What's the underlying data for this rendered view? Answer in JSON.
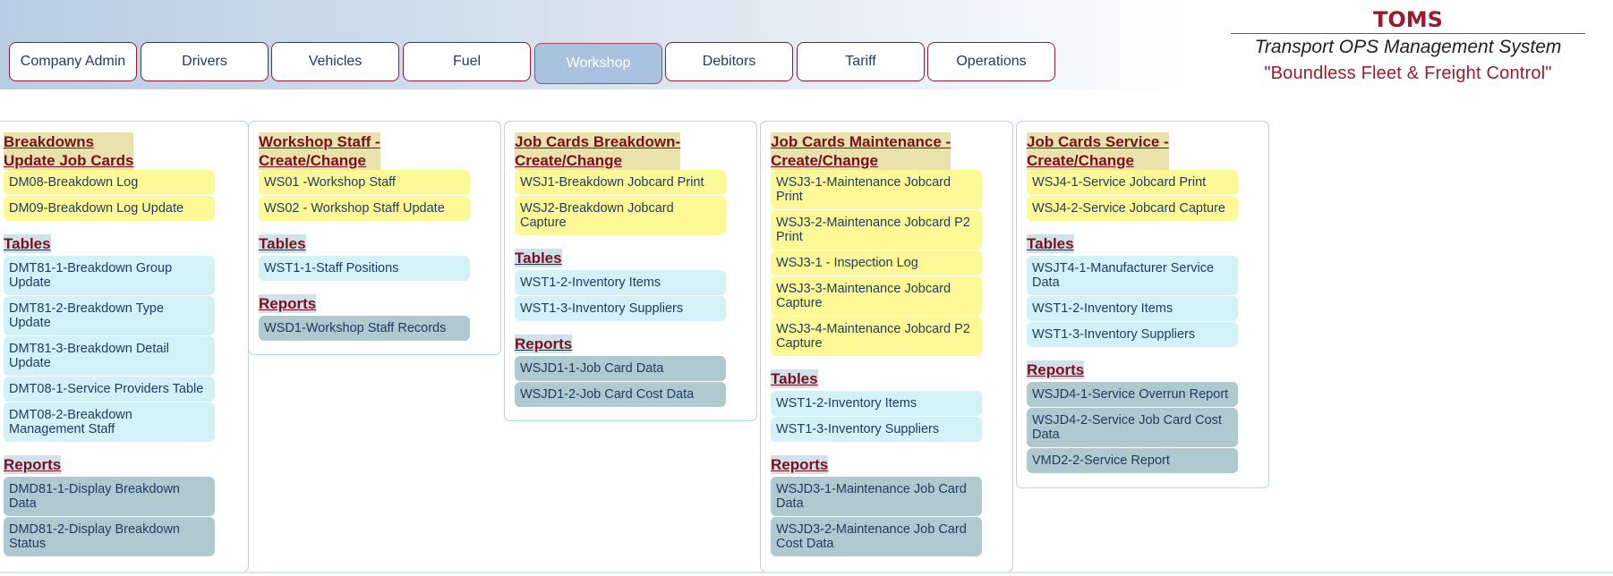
{
  "tabs": [
    "Company Admin",
    "Drivers",
    "Vehicles",
    "Fuel",
    "Workshop",
    "Debitors",
    "Tariff",
    "Operations"
  ],
  "active_tab": "Workshop",
  "brand": {
    "title": "TOMS",
    "subtitle": "Transport OPS Management System",
    "tagline": "\"Boundless Fleet & Freight Control\""
  },
  "columns": [
    {
      "title_line1": "Breakdowns",
      "title_line2": "Update Job Cards",
      "main_items": [
        "DM08-Breakdown Log",
        "DM09-Breakdown Log Update"
      ],
      "tables_label": "Tables",
      "tables": [
        "DMT81-1-Breakdown Group Update",
        "DMT81-2-Breakdown Type Update",
        "DMT81-3-Breakdown Detail Update",
        "DMT08-1-Service Providers Table",
        "DMT08-2-Breakdown Management Staff"
      ],
      "reports_label": "Reports",
      "reports": [
        "DMD81-1-Display Breakdown Data",
        "DMD81-2-Display Breakdown Status"
      ]
    },
    {
      "title_line1": "Workshop Staff -",
      "title_line2": "Create/Change",
      "main_items": [
        "WS01 -Workshop Staff",
        "WS02 - Workshop Staff Update"
      ],
      "tables_label": "Tables",
      "tables": [
        "WST1-1-Staff Positions"
      ],
      "reports_label": "Reports",
      "reports": [
        "WSD1-Workshop Staff Records"
      ]
    },
    {
      "title_line1": "Job Cards Breakdown-",
      "title_line2": "Create/Change",
      "main_items": [
        "WSJ1-Breakdown Jobcard Print",
        "WSJ2-Breakdown Jobcard Capture"
      ],
      "tables_label": "Tables",
      "tables": [
        "WST1-2-Inventory Items",
        "WST1-3-Inventory Suppliers"
      ],
      "reports_label": "Reports",
      "reports": [
        "WSJD1-1-Job Card Data",
        "WSJD1-2-Job Card Cost Data"
      ]
    },
    {
      "title_line1": "Job Cards Maintenance -",
      "title_line2": "Create/Change",
      "main_items": [
        "WSJ3-1-Maintenance Jobcard Print",
        "WSJ3-2-Maintenance Jobcard P2 Print",
        "WSJ3-1 - Inspection Log",
        "WSJ3-3-Maintenance Jobcard Capture",
        "WSJ3-4-Maintenance Jobcard P2 Capture"
      ],
      "tables_label": "Tables",
      "tables": [
        "WST1-2-Inventory Items",
        "WST1-3-Inventory Suppliers"
      ],
      "reports_label": "Reports",
      "reports": [
        "WSJD3-1-Maintenance Job Card Data",
        "WSJD3-2-Maintenance Job Card Cost Data"
      ]
    },
    {
      "title_line1": "Job Cards Service -",
      "title_line2": "Create/Change",
      "main_items": [
        "WSJ4-1-Service Jobcard Print",
        "WSJ4-2-Service Jobcard Capture"
      ],
      "tables_label": "Tables",
      "tables": [
        "WSJT4-1-Manufacturer Service Data",
        "WST1-2-Inventory Items",
        "WST1-3-Inventory Suppliers"
      ],
      "reports_label": "Reports",
      "reports": [
        "WSJD4-1-Service Overrun Report",
        "WSJD4-2-Service Job Card Cost Data",
        "VMD2-2-Service Report"
      ]
    }
  ],
  "colors": {
    "tab_border": "#8b1a35",
    "active_tab_bg": "#a9c3de",
    "heading": "#7a0f1e",
    "main_item_bg": "#fdf996",
    "table_item_bg": "#d2f1f9",
    "report_item_bg": "#afc9d1"
  }
}
